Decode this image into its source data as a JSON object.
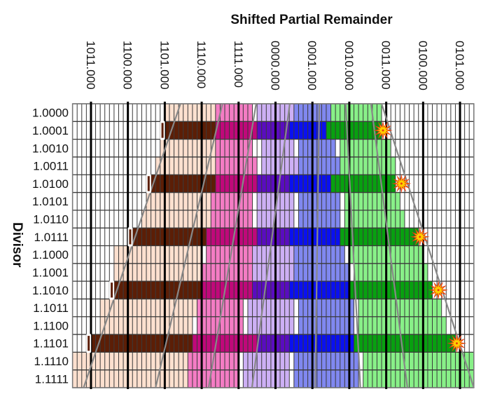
{
  "chart_data": {
    "type": "heatmap",
    "title": "Shifted Partial Remainder",
    "xlabel": "Shifted Partial Remainder",
    "ylabel": "Divisor",
    "grid": true,
    "columns_total": 87,
    "columns_per_unit": 8,
    "x_tick_labels": [
      "1011.000",
      "1100.000",
      "1101.000",
      "1110.000",
      "1111.000",
      "0000.000",
      "0001.000",
      "0010.000",
      "0011.000",
      "0100.000",
      "0101.000"
    ],
    "x_tick_columns": [
      4,
      12,
      20,
      28,
      36,
      44,
      52,
      60,
      68,
      76,
      84
    ],
    "y_categories": [
      "1.0000",
      "1.0001",
      "1.0010",
      "1.0011",
      "1.0100",
      "1.0101",
      "1.0110",
      "1.0111",
      "1.1000",
      "1.1001",
      "1.1010",
      "1.1011",
      "1.1100",
      "1.1101",
      "1.1110",
      "1.1111"
    ],
    "colors": {
      "peach": "#fde0cf",
      "brown": "#5c1e06",
      "pink": "#f47cc4",
      "magenta": "#c0087a",
      "lavender": "#cdb0f5",
      "purple": "#5a0cc0",
      "lightblue": "#8088f0",
      "blue": "#0a10f0",
      "lightgreen": "#88f088",
      "green": "#08a010",
      "gridline": "#333333",
      "majorline": "#000000",
      "diagonal": "#888888",
      "burst_outer": "#e83c10",
      "burst_inner": "#ffd000"
    },
    "rows": [
      {
        "divisor": "1.0000",
        "highlight": false,
        "spans": [
          [
            "peach",
            20,
            31
          ],
          [
            "pink",
            31,
            39
          ],
          [
            "lavender",
            40,
            48
          ],
          [
            "lightblue",
            48,
            56
          ],
          [
            "lightgreen",
            56,
            67
          ]
        ]
      },
      {
        "divisor": "1.0001",
        "highlight": true,
        "marker": 19,
        "burst": 67,
        "spans": [
          [
            "brown",
            20,
            31
          ],
          [
            "magenta",
            31,
            40
          ],
          [
            "purple",
            40,
            47
          ],
          [
            "blue",
            47,
            55
          ],
          [
            "green",
            55,
            67
          ]
        ]
      },
      {
        "divisor": "1.0010",
        "highlight": false,
        "spans": [
          [
            "peach",
            19,
            31
          ],
          [
            "pink",
            31,
            39
          ],
          [
            "lavender",
            41,
            48
          ],
          [
            "lightblue",
            49,
            57
          ],
          [
            "lightgreen",
            58,
            69
          ]
        ]
      },
      {
        "divisor": "1.0011",
        "highlight": false,
        "spans": [
          [
            "peach",
            18,
            31
          ],
          [
            "pink",
            31,
            40
          ],
          [
            "lavender",
            41,
            49
          ],
          [
            "lightblue",
            49,
            58
          ],
          [
            "lightgreen",
            58,
            70
          ]
        ]
      },
      {
        "divisor": "1.0100",
        "highlight": true,
        "marker": 16,
        "burst": 71,
        "spans": [
          [
            "brown",
            17,
            31
          ],
          [
            "magenta",
            31,
            40
          ],
          [
            "purple",
            40,
            47
          ],
          [
            "blue",
            47,
            56
          ],
          [
            "green",
            56,
            70
          ]
        ]
      },
      {
        "divisor": "1.0101",
        "highlight": false,
        "spans": [
          [
            "peach",
            16,
            30
          ],
          [
            "pink",
            30,
            39
          ],
          [
            "lavender",
            40,
            48
          ],
          [
            "lightblue",
            49,
            58
          ],
          [
            "lightgreen",
            59,
            71
          ]
        ]
      },
      {
        "divisor": "1.0110",
        "highlight": false,
        "spans": [
          [
            "peach",
            15,
            30
          ],
          [
            "pink",
            30,
            39
          ],
          [
            "lavender",
            40,
            48
          ],
          [
            "lightblue",
            49,
            58
          ],
          [
            "lightgreen",
            59,
            72
          ]
        ]
      },
      {
        "divisor": "1.0111",
        "highlight": true,
        "marker": 12,
        "burst": 75,
        "spans": [
          [
            "brown",
            13,
            29
          ],
          [
            "magenta",
            29,
            40
          ],
          [
            "purple",
            40,
            47
          ],
          [
            "blue",
            47,
            58
          ],
          [
            "green",
            58,
            75
          ]
        ]
      },
      {
        "divisor": "1.1000",
        "highlight": false,
        "spans": [
          [
            "peach",
            9,
            28
          ],
          [
            "pink",
            29,
            39
          ],
          [
            "lavender",
            39,
            48
          ],
          [
            "lightblue",
            48,
            59
          ],
          [
            "lightgreen",
            60,
            76
          ]
        ]
      },
      {
        "divisor": "1.1001",
        "highlight": false,
        "spans": [
          [
            "peach",
            9,
            28
          ],
          [
            "pink",
            28,
            39
          ],
          [
            "lavender",
            39,
            48
          ],
          [
            "lightblue",
            48,
            60
          ],
          [
            "lightgreen",
            61,
            77
          ]
        ]
      },
      {
        "divisor": "1.1010",
        "highlight": true,
        "marker": 8,
        "burst": 79,
        "spans": [
          [
            "brown",
            9,
            28
          ],
          [
            "magenta",
            28,
            39
          ],
          [
            "purple",
            39,
            47
          ],
          [
            "blue",
            47,
            60
          ],
          [
            "green",
            60,
            78
          ]
        ]
      },
      {
        "divisor": "1.1011",
        "highlight": false,
        "spans": [
          [
            "peach",
            6,
            27
          ],
          [
            "pink",
            27,
            37
          ],
          [
            "lavender",
            38,
            48
          ],
          [
            "lightblue",
            49,
            61
          ],
          [
            "lightgreen",
            62,
            80
          ]
        ]
      },
      {
        "divisor": "1.1100",
        "highlight": false,
        "spans": [
          [
            "peach",
            6,
            26
          ],
          [
            "pink",
            27,
            37
          ],
          [
            "lavender",
            38,
            48
          ],
          [
            "lightblue",
            49,
            61
          ],
          [
            "lightgreen",
            62,
            81
          ]
        ]
      },
      {
        "divisor": "1.1101",
        "highlight": true,
        "marker": 3,
        "burst": 83,
        "spans": [
          [
            "brown",
            4,
            26
          ],
          [
            "magenta",
            26,
            40
          ],
          [
            "purple",
            40,
            47
          ],
          [
            "blue",
            47,
            61
          ],
          [
            "green",
            61,
            83
          ]
        ]
      },
      {
        "divisor": "1.1110",
        "highlight": false,
        "spans": [
          [
            "peach",
            0,
            25
          ],
          [
            "pink",
            25,
            36
          ],
          [
            "lavender",
            37,
            47
          ],
          [
            "lightblue",
            48,
            62
          ],
          [
            "lightgreen",
            63,
            87
          ]
        ]
      },
      {
        "divisor": "1.1111",
        "highlight": false,
        "spans": [
          [
            "peach",
            0,
            25
          ],
          [
            "pink",
            25,
            36
          ],
          [
            "lavender",
            37,
            47
          ],
          [
            "lightblue",
            48,
            62
          ],
          [
            "lightgreen",
            63,
            87
          ]
        ]
      }
    ],
    "boundary_lines": [
      {
        "top_col": 23.4,
        "bottom_col": 2.4
      },
      {
        "top_col": 32.5,
        "bottom_col": 18.0
      },
      {
        "top_col": 39.8,
        "bottom_col": 29.5
      },
      {
        "top_col": 47.1,
        "bottom_col": 38.9
      },
      {
        "top_col": 53.5,
        "bottom_col": 52.6
      },
      {
        "top_col": 59.2,
        "bottom_col": 62.4
      },
      {
        "top_col": 64.7,
        "bottom_col": 72.6
      },
      {
        "top_col": 67.0,
        "bottom_col": 87.0
      }
    ]
  }
}
